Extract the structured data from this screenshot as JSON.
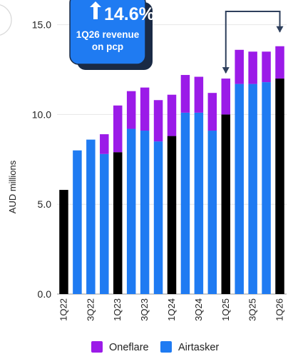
{
  "callout": {
    "value_text": "14.6%",
    "label_line1": "1Q26 revenue",
    "label_line2": "on pcp"
  },
  "chart_data": {
    "type": "bar",
    "stacked": true,
    "ylabel": "AUD millions",
    "ylim": [
      0,
      15.5
    ],
    "yticks": [
      0.0,
      5.0,
      10.0,
      15.0
    ],
    "ytick_labels": [
      "0.0",
      "5.0",
      "10.0",
      "15.0"
    ],
    "categories": [
      "1Q22",
      "2Q22",
      "3Q22",
      "4Q22",
      "1Q23",
      "2Q23",
      "3Q23",
      "4Q23",
      "1Q24",
      "2Q24",
      "3Q24",
      "4Q24",
      "1Q25",
      "2Q25",
      "3Q25",
      "4Q25",
      "1Q26"
    ],
    "xtick_labels": [
      "1Q22",
      "",
      "3Q22",
      "",
      "1Q23",
      "",
      "3Q23",
      "",
      "1Q24",
      "",
      "3Q24",
      "",
      "1Q25",
      "",
      "3Q25",
      "",
      "1Q26"
    ],
    "highlight_categories": [
      "1Q22",
      "1Q23",
      "1Q24",
      "1Q25",
      "1Q26"
    ],
    "series": [
      {
        "name": "Airtasker",
        "color": "#1F7BF2",
        "values": [
          5.8,
          8.0,
          8.6,
          7.8,
          7.9,
          9.2,
          9.1,
          8.5,
          8.8,
          10.1,
          10.1,
          9.1,
          10.0,
          11.7,
          11.7,
          11.8,
          12.0
        ]
      },
      {
        "name": "Oneflare",
        "color": "#9B1BE8",
        "values": [
          0,
          0,
          0,
          1.1,
          2.6,
          2.1,
          2.4,
          2.3,
          2.3,
          2.1,
          2.0,
          2.1,
          2.0,
          1.9,
          1.8,
          1.7,
          1.8
        ]
      }
    ],
    "highlight_color": "#000000",
    "legend_position": "bottom"
  }
}
